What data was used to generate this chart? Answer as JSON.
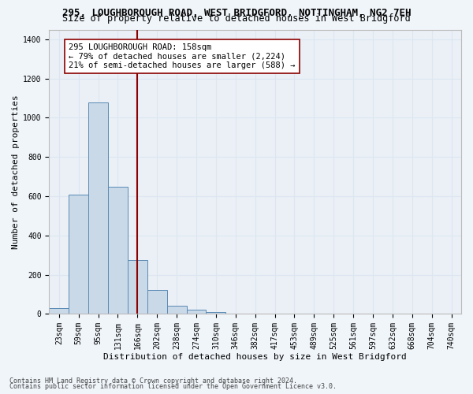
{
  "title_line1": "295, LOUGHBOROUGH ROAD, WEST BRIDGFORD, NOTTINGHAM, NG2 7EH",
  "title_line2": "Size of property relative to detached houses in West Bridgford",
  "xlabel": "Distribution of detached houses by size in West Bridgford",
  "ylabel": "Number of detached properties",
  "categories": [
    "23sqm",
    "59sqm",
    "95sqm",
    "131sqm",
    "166sqm",
    "202sqm",
    "238sqm",
    "274sqm",
    "310sqm",
    "346sqm",
    "382sqm",
    "417sqm",
    "453sqm",
    "489sqm",
    "525sqm",
    "561sqm",
    "597sqm",
    "632sqm",
    "668sqm",
    "704sqm",
    "740sqm"
  ],
  "values": [
    30,
    610,
    1080,
    650,
    275,
    120,
    40,
    20,
    10,
    0,
    0,
    0,
    0,
    0,
    0,
    0,
    0,
    0,
    0,
    0,
    0
  ],
  "bar_color": "#c9d9e8",
  "bar_edge_color": "#5a8ab5",
  "vline_x": 4.0,
  "vline_color": "#8b0000",
  "annotation_text": "295 LOUGHBOROUGH ROAD: 158sqm\n← 79% of detached houses are smaller (2,224)\n21% of semi-detached houses are larger (588) →",
  "annotation_box_color": "#ffffff",
  "annotation_box_edge": "#8b0000",
  "ylim": [
    0,
    1450
  ],
  "yticks": [
    0,
    200,
    400,
    600,
    800,
    1000,
    1200,
    1400
  ],
  "grid_color": "#dce6f1",
  "bg_color": "#eaf0f6",
  "fig_bg_color": "#f0f5fa",
  "footer_line1": "Contains HM Land Registry data © Crown copyright and database right 2024.",
  "footer_line2": "Contains public sector information licensed under the Open Government Licence v3.0.",
  "title_fontsize": 9,
  "subtitle_fontsize": 8.5,
  "axis_label_fontsize": 8,
  "tick_fontsize": 7,
  "annotation_fontsize": 7.5,
  "footer_fontsize": 6
}
